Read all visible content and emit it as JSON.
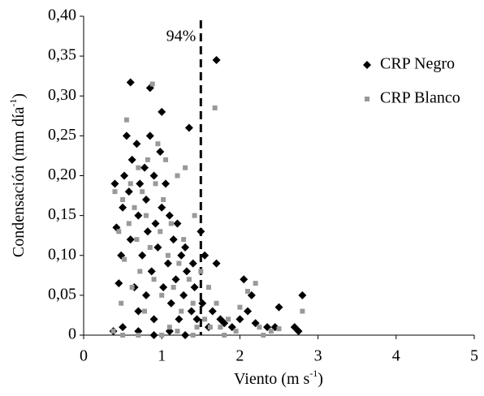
{
  "chart_data": {
    "type": "scatter",
    "xlabel": [
      "Viento (m s",
      "-1",
      ")"
    ],
    "ylabel": [
      "Condensación (mm día",
      "-1",
      ")"
    ],
    "annotation": {
      "text": "94%",
      "x": 1.5
    },
    "xlim": [
      0,
      5
    ],
    "xticks": [
      0,
      1,
      2,
      3,
      4,
      5
    ],
    "ylim": [
      0,
      0.4
    ],
    "yticks": [
      0,
      {
        "value": 0.05,
        "label": "0,05"
      },
      {
        "value": 0.1,
        "label": "0,10"
      },
      {
        "value": 0.15,
        "label": "0,15"
      },
      {
        "value": 0.2,
        "label": "0,20"
      },
      {
        "value": 0.25,
        "label": "0,25"
      },
      {
        "value": 0.3,
        "label": "0,30"
      },
      {
        "value": 0.35,
        "label": "0,35"
      },
      {
        "value": 0.4,
        "label": "0,40"
      }
    ],
    "grid": false,
    "legend": "upper right",
    "series": [
      {
        "name": "CRP Negro",
        "color": "#000000",
        "marker": "diamond",
        "x": [
          0.4,
          0.42,
          0.45,
          0.48,
          0.5,
          0.52,
          0.55,
          0.58,
          0.6,
          0.6,
          0.62,
          0.65,
          0.68,
          0.7,
          0.7,
          0.72,
          0.75,
          0.78,
          0.8,
          0.8,
          0.82,
          0.85,
          0.85,
          0.87,
          0.9,
          0.9,
          0.92,
          0.95,
          0.98,
          1.0,
          1.0,
          1.02,
          1.05,
          1.08,
          1.1,
          1.12,
          1.15,
          1.18,
          1.2,
          1.22,
          1.25,
          1.28,
          1.3,
          1.32,
          1.35,
          1.38,
          1.4,
          1.42,
          1.45,
          1.5,
          1.52,
          1.55,
          1.6,
          1.65,
          1.7,
          1.7,
          1.75,
          1.8,
          1.9,
          2.0,
          2.05,
          2.1,
          2.15,
          2.2,
          2.35,
          2.45,
          2.5,
          2.7,
          2.75,
          2.8,
          0.38,
          0.5,
          0.7,
          0.9,
          1.1,
          1.3
        ],
        "values": [
          0.19,
          0.135,
          0.065,
          0.1,
          0.16,
          0.2,
          0.25,
          0.18,
          0.317,
          0.12,
          0.22,
          0.06,
          0.24,
          0.15,
          0.03,
          0.19,
          0.1,
          0.21,
          0.17,
          0.05,
          0.13,
          0.31,
          0.25,
          0.08,
          0.2,
          0.02,
          0.14,
          0.11,
          0.23,
          0.28,
          0.16,
          0.06,
          0.19,
          0.09,
          0.15,
          0.04,
          0.12,
          0.07,
          0.14,
          0.02,
          0.1,
          0.05,
          0.11,
          0.08,
          0.26,
          0.03,
          0.09,
          0.06,
          0.02,
          0.13,
          0.04,
          0.1,
          0.01,
          0.03,
          0.345,
          0.09,
          0.02,
          0.015,
          0.01,
          0.02,
          0.07,
          0.03,
          0.05,
          0.015,
          0.01,
          0.01,
          0.035,
          0.01,
          0.005,
          0.05,
          0.005,
          0.01,
          0.005,
          0,
          0.005,
          0
        ]
      },
      {
        "name": "CRP Blanco",
        "color": "#999999",
        "marker": "square",
        "x": [
          0.38,
          0.4,
          0.45,
          0.48,
          0.5,
          0.52,
          0.55,
          0.58,
          0.6,
          0.62,
          0.65,
          0.68,
          0.7,
          0.72,
          0.75,
          0.78,
          0.8,
          0.82,
          0.85,
          0.88,
          0.9,
          0.92,
          0.95,
          0.98,
          1.0,
          1.02,
          1.05,
          1.08,
          1.1,
          1.12,
          1.15,
          1.2,
          1.22,
          1.25,
          1.28,
          1.3,
          1.35,
          1.4,
          1.42,
          1.45,
          1.5,
          1.55,
          1.6,
          1.62,
          1.68,
          1.7,
          1.75,
          1.85,
          1.95,
          2.0,
          2.1,
          2.2,
          2.25,
          2.4,
          2.5,
          2.8,
          0.5,
          0.7,
          1.0,
          1.2,
          1.4,
          1.8,
          2.3
        ],
        "values": [
          0.005,
          0.18,
          0.13,
          0.04,
          0.17,
          0.095,
          0.27,
          0.14,
          0.19,
          0.06,
          0.16,
          0.12,
          0.21,
          0.08,
          0.18,
          0.03,
          0.15,
          0.22,
          0.11,
          0.315,
          0.07,
          0.19,
          0.24,
          0.13,
          0.05,
          0.17,
          0.22,
          0.1,
          0.01,
          0.14,
          0.06,
          0.2,
          0.09,
          0.03,
          0.12,
          0.21,
          0.07,
          0.04,
          0.15,
          0.01,
          0.08,
          0.02,
          0.06,
          0.01,
          0.285,
          0.04,
          0.01,
          0.02,
          0.005,
          0.035,
          0.055,
          0.065,
          0.01,
          0.005,
          0.008,
          0.03,
          0,
          0,
          0,
          0.005,
          0,
          0,
          0
        ]
      }
    ]
  }
}
